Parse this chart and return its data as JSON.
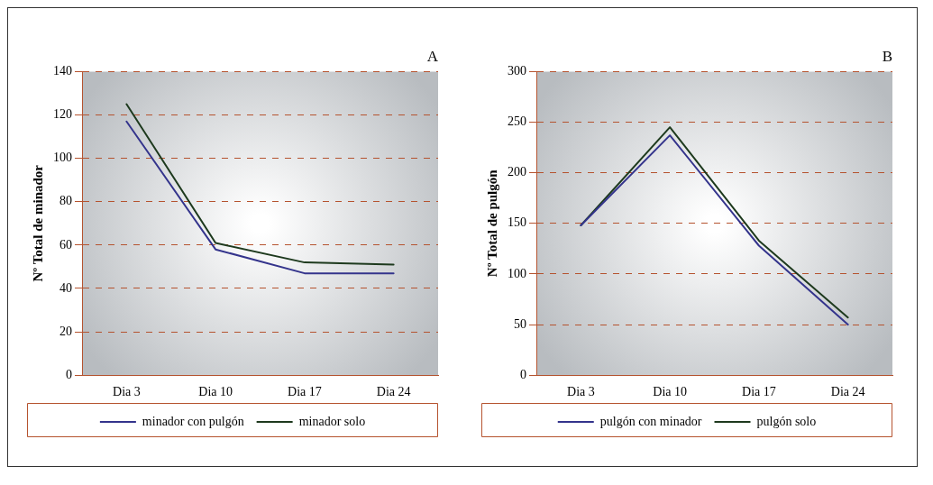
{
  "chart_data": [
    {
      "type": "line",
      "title": "A",
      "ylabel": "Nº Total de minador",
      "categories": [
        "Dia 3",
        "Dia 10",
        "Dia 17",
        "Dia 24"
      ],
      "series": [
        {
          "name": "minador con pulgón",
          "color": "#34348c",
          "values": [
            117,
            58,
            47,
            47
          ]
        },
        {
          "name": "minador solo",
          "color": "#1e3a1e",
          "values": [
            125,
            61,
            52,
            51
          ]
        }
      ],
      "ylim": [
        0,
        140
      ],
      "yticks": [
        0,
        20,
        40,
        60,
        80,
        100,
        120,
        140
      ],
      "grid": "y",
      "legend": "bottom",
      "marker": "none",
      "line_style": "solid"
    },
    {
      "type": "line",
      "title": "B",
      "ylabel": "Nº Total de pulgón",
      "categories": [
        "Dia 3",
        "Dia 10",
        "Dia 17",
        "Dia 24"
      ],
      "series": [
        {
          "name": "pulgón con minador",
          "color": "#34348c",
          "values": [
            148,
            237,
            128,
            50
          ]
        },
        {
          "name": "pulgón solo",
          "color": "#1e3a1e",
          "values": [
            148,
            245,
            133,
            57
          ]
        }
      ],
      "ylim": [
        0,
        300
      ],
      "yticks": [
        0,
        50,
        100,
        150,
        200,
        250,
        300
      ],
      "grid": "y",
      "legend": "bottom",
      "marker": "none",
      "line_style": "solid"
    }
  ]
}
